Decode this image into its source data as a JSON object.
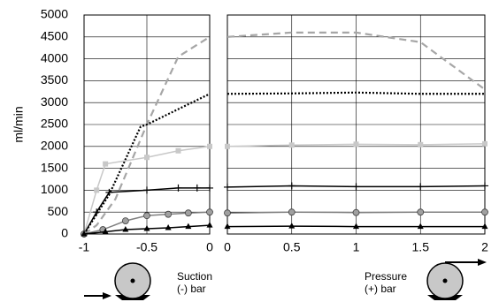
{
  "chart_data": [
    {
      "type": "line",
      "ylabel": "ml/min",
      "annotation": [
        "Suction",
        "(-) bar"
      ],
      "xlim": [
        -1,
        0
      ],
      "xticks": [
        -1,
        -0.5,
        0
      ],
      "ylim": [
        0,
        5000
      ],
      "yticks": [
        0,
        500,
        1000,
        1500,
        2000,
        2500,
        3000,
        3500,
        4000,
        4500,
        5000
      ],
      "grid": true,
      "show_yticks": true,
      "series": [
        {
          "color": "#a6a6a6",
          "dash": "dashed",
          "marker": "none",
          "x": [
            -1,
            -0.9,
            -0.75,
            -0.5,
            -0.25,
            0
          ],
          "values": [
            0,
            200,
            800,
            2500,
            4050,
            4500
          ]
        },
        {
          "color": "#000000",
          "dash": "dotted",
          "marker": "none",
          "x": [
            -1,
            -0.8,
            -0.55,
            -0.5,
            0
          ],
          "values": [
            0,
            900,
            2450,
            2500,
            3200
          ]
        },
        {
          "color": "#c8c8c8",
          "dash": "solid",
          "marker": "square",
          "x": [
            -1,
            -0.9,
            -0.83,
            -0.5,
            -0.25,
            0
          ],
          "values": [
            0,
            1000,
            1600,
            1750,
            1900,
            2000
          ]
        },
        {
          "color": "#000000",
          "dash": "solid",
          "marker": "plus",
          "x": [
            -1,
            -0.9,
            -0.8,
            -0.5,
            -0.25,
            -0.1,
            0
          ],
          "values": [
            0,
            500,
            950,
            1000,
            1050,
            1050,
            1050
          ]
        },
        {
          "color": "#808080",
          "dash": "solid",
          "marker": "circle",
          "x": [
            -1,
            -0.85,
            -0.67,
            -0.5,
            -0.33,
            -0.17,
            0
          ],
          "values": [
            0,
            100,
            300,
            420,
            450,
            480,
            500
          ]
        },
        {
          "color": "#000000",
          "dash": "solid",
          "marker": "triangle",
          "x": [
            -1,
            -0.83,
            -0.67,
            -0.5,
            -0.33,
            -0.17,
            0
          ],
          "values": [
            0,
            50,
            100,
            120,
            140,
            170,
            200
          ]
        }
      ]
    },
    {
      "type": "line",
      "annotation": [
        "Pressure",
        "(+) bar"
      ],
      "xlim": [
        0,
        2
      ],
      "xticks": [
        0,
        0.5,
        1,
        1.5,
        2
      ],
      "ylim": [
        0,
        5000
      ],
      "yticks": [
        0,
        500,
        1000,
        1500,
        2000,
        2500,
        3000,
        3500,
        4000,
        4500,
        5000
      ],
      "grid": true,
      "show_yticks": false,
      "series": [
        {
          "color": "#a6a6a6",
          "dash": "dashed",
          "marker": "none",
          "x": [
            0,
            0.5,
            1,
            1.5,
            2
          ],
          "values": [
            4500,
            4600,
            4600,
            4380,
            3300
          ]
        },
        {
          "color": "#000000",
          "dash": "dotted",
          "marker": "none",
          "x": [
            0,
            0.5,
            1,
            1.5,
            2
          ],
          "values": [
            3200,
            3210,
            3230,
            3200,
            3200
          ]
        },
        {
          "color": "#c8c8c8",
          "dash": "solid",
          "marker": "square",
          "x": [
            0,
            0.5,
            1,
            1.5,
            2
          ],
          "values": [
            2000,
            2030,
            2050,
            2040,
            2060
          ]
        },
        {
          "color": "#000000",
          "dash": "solid",
          "marker": "plus",
          "x": [
            0,
            0.5,
            1,
            1.5,
            2
          ],
          "values": [
            1070,
            1100,
            1080,
            1080,
            1100
          ]
        },
        {
          "color": "#808080",
          "dash": "solid",
          "marker": "circle",
          "x": [
            0,
            0.5,
            1,
            1.5,
            2
          ],
          "values": [
            480,
            500,
            490,
            500,
            500
          ]
        },
        {
          "color": "#000000",
          "dash": "solid",
          "marker": "triangle",
          "x": [
            0,
            0.5,
            1,
            1.5,
            2
          ],
          "values": [
            170,
            180,
            170,
            170,
            170
          ]
        }
      ]
    }
  ]
}
